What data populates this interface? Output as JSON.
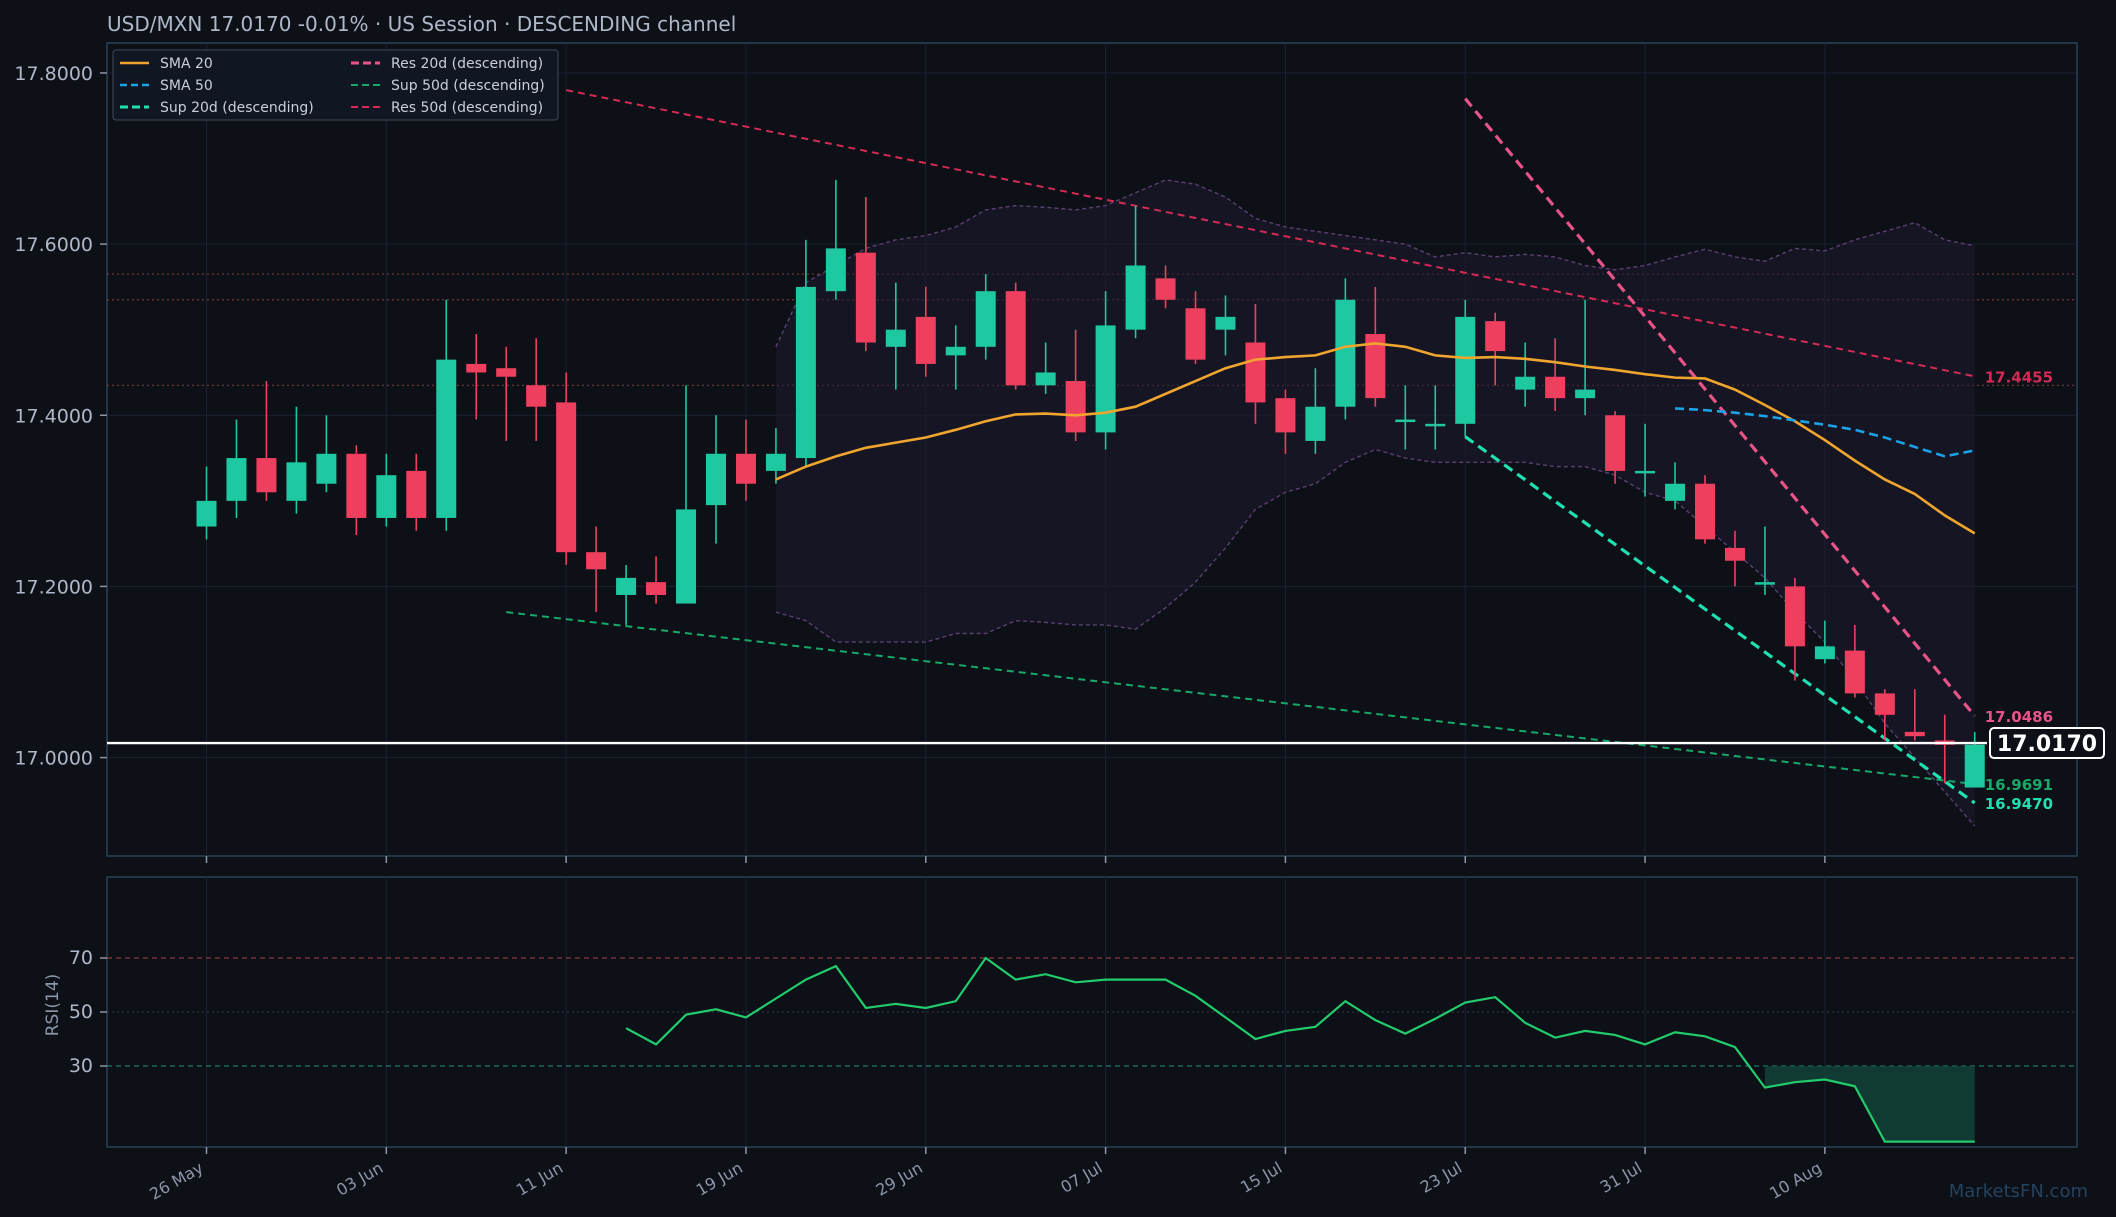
{
  "header": {
    "pair": "USD/MXN",
    "price": "17.0170",
    "change": "-0.01%",
    "session": "US Session",
    "channel": "DESCENDING channel",
    "title": "USD/MXN   17.0170   -0.01%  ·  US Session  ·  DESCENDING channel"
  },
  "watermark": "MarketsFN.com",
  "colors": {
    "background": "#0d1017",
    "panel_border": "#2b4258",
    "up": "#1ec8a0",
    "down": "#ef3f5f",
    "sma20": "#f0a52e",
    "sma50": "#1aa3e8",
    "res20": "#e8548a",
    "sup20": "#1fe0b0",
    "res50": "#d42a55",
    "sup50": "#17a86a",
    "rsi": "#22cc6c",
    "last_price": "#ffffff"
  },
  "chart_data": [
    {
      "type": "candlestick",
      "title": "USD/MXN   17.0170   -0.01%  ·  US Session  ·  DESCENDING channel",
      "ylim": [
        16.885,
        17.835
      ],
      "yticks": [
        "17.0000",
        "17.2000",
        "17.4000",
        "17.6000",
        "17.8000"
      ],
      "ytick_values": [
        17.0,
        17.2,
        17.4,
        17.6,
        17.8
      ],
      "xticks": [
        "26 May",
        "03 Jun",
        "11 Jun",
        "19 Jun",
        "29 Jun",
        "07 Jul",
        "15 Jul",
        "23 Jul",
        "31 Jul",
        "10 Aug"
      ],
      "xtick_index": [
        0,
        6,
        12,
        18,
        24,
        30,
        36,
        42,
        48,
        54
      ],
      "num_bars": 60,
      "last_price": 17.017,
      "last_price_label": "17.0170",
      "candles": [
        [
          17.27,
          17.3,
          17.255,
          17.34
        ],
        [
          17.3,
          17.35,
          17.28,
          17.395
        ],
        [
          17.35,
          17.31,
          17.3,
          17.44
        ],
        [
          17.3,
          17.345,
          17.285,
          17.41
        ],
        [
          17.32,
          17.355,
          17.31,
          17.4
        ],
        [
          17.355,
          17.28,
          17.26,
          17.365
        ],
        [
          17.28,
          17.33,
          17.27,
          17.355
        ],
        [
          17.335,
          17.28,
          17.265,
          17.355
        ],
        [
          17.28,
          17.465,
          17.265,
          17.535
        ],
        [
          17.46,
          17.45,
          17.395,
          17.495
        ],
        [
          17.455,
          17.445,
          17.37,
          17.48
        ],
        [
          17.435,
          17.41,
          17.37,
          17.49
        ],
        [
          17.415,
          17.24,
          17.225,
          17.45
        ],
        [
          17.24,
          17.22,
          17.17,
          17.27
        ],
        [
          17.19,
          17.21,
          17.155,
          17.225
        ],
        [
          17.205,
          17.19,
          17.18,
          17.235
        ],
        [
          17.18,
          17.29,
          17.18,
          17.435
        ],
        [
          17.295,
          17.355,
          17.25,
          17.4
        ],
        [
          17.355,
          17.32,
          17.3,
          17.395
        ],
        [
          17.335,
          17.355,
          17.32,
          17.385
        ],
        [
          17.35,
          17.55,
          17.34,
          17.605
        ],
        [
          17.545,
          17.595,
          17.535,
          17.675
        ],
        [
          17.59,
          17.485,
          17.475,
          17.655
        ],
        [
          17.48,
          17.5,
          17.43,
          17.555
        ],
        [
          17.515,
          17.46,
          17.445,
          17.55
        ],
        [
          17.47,
          17.48,
          17.43,
          17.505
        ],
        [
          17.48,
          17.545,
          17.465,
          17.565
        ],
        [
          17.545,
          17.435,
          17.43,
          17.555
        ],
        [
          17.435,
          17.45,
          17.425,
          17.485
        ],
        [
          17.44,
          17.38,
          17.37,
          17.5
        ],
        [
          17.38,
          17.505,
          17.36,
          17.545
        ],
        [
          17.5,
          17.575,
          17.49,
          17.645
        ],
        [
          17.56,
          17.535,
          17.525,
          17.575
        ],
        [
          17.525,
          17.465,
          17.46,
          17.545
        ],
        [
          17.5,
          17.515,
          17.47,
          17.54
        ],
        [
          17.485,
          17.415,
          17.39,
          17.53
        ],
        [
          17.42,
          17.38,
          17.355,
          17.43
        ],
        [
          17.37,
          17.41,
          17.355,
          17.455
        ],
        [
          17.41,
          17.535,
          17.395,
          17.56
        ],
        [
          17.495,
          17.42,
          17.41,
          17.55
        ],
        [
          17.395,
          17.395,
          17.36,
          17.435
        ],
        [
          17.39,
          17.39,
          17.36,
          17.435
        ],
        [
          17.39,
          17.515,
          17.375,
          17.535
        ],
        [
          17.51,
          17.475,
          17.435,
          17.52
        ],
        [
          17.43,
          17.445,
          17.41,
          17.485
        ],
        [
          17.445,
          17.42,
          17.405,
          17.49
        ],
        [
          17.42,
          17.43,
          17.4,
          17.535
        ],
        [
          17.4,
          17.335,
          17.32,
          17.405
        ],
        [
          17.335,
          17.335,
          17.305,
          17.39
        ],
        [
          17.3,
          17.32,
          17.29,
          17.345
        ],
        [
          17.32,
          17.255,
          17.25,
          17.33
        ],
        [
          17.245,
          17.23,
          17.2,
          17.265
        ],
        [
          17.205,
          17.205,
          17.19,
          17.27
        ],
        [
          17.2,
          17.13,
          17.09,
          17.21
        ],
        [
          17.115,
          17.13,
          17.11,
          17.16
        ],
        [
          17.125,
          17.075,
          17.07,
          17.155
        ],
        [
          17.075,
          17.05,
          17.02,
          17.08
        ],
        [
          17.03,
          17.025,
          17.02,
          17.08
        ],
        [
          17.02,
          17.015,
          16.97,
          17.05
        ],
        [
          16.965,
          17.015,
          16.965,
          17.03
        ]
      ],
      "sma20": {
        "start": 19,
        "values": [
          17.325,
          17.34,
          17.352,
          17.362,
          17.368,
          17.374,
          17.383,
          17.393,
          17.401,
          17.402,
          17.4,
          17.403,
          17.41,
          17.425,
          17.44,
          17.455,
          17.465,
          17.468,
          17.47,
          17.48,
          17.484,
          17.48,
          17.47,
          17.467,
          17.468,
          17.466,
          17.462,
          17.457,
          17.453,
          17.448,
          17.444,
          17.443,
          17.43,
          17.412,
          17.393,
          17.371,
          17.347,
          17.325,
          17.308,
          17.283,
          17.262
        ]
      },
      "sma50": {
        "start": 49,
        "values": [
          17.408,
          17.406,
          17.403,
          17.399,
          17.394,
          17.389,
          17.383,
          17.374,
          17.363,
          17.352,
          17.359
        ]
      },
      "bb_upper": {
        "start": 19,
        "values": [
          17.48,
          17.555,
          17.575,
          17.595,
          17.605,
          17.61,
          17.62,
          17.64,
          17.645,
          17.643,
          17.64,
          17.645,
          17.66,
          17.675,
          17.67,
          17.655,
          17.63,
          17.62,
          17.615,
          17.61,
          17.605,
          17.6,
          17.585,
          17.59,
          17.585,
          17.588,
          17.585,
          17.575,
          17.57,
          17.575,
          17.585,
          17.594,
          17.585,
          17.58,
          17.595,
          17.592,
          17.605,
          17.615,
          17.625,
          17.605,
          17.598
        ]
      },
      "bb_lower": {
        "start": 19,
        "values": [
          17.17,
          17.16,
          17.135,
          17.135,
          17.135,
          17.135,
          17.145,
          17.145,
          17.16,
          17.158,
          17.155,
          17.155,
          17.15,
          17.175,
          17.205,
          17.245,
          17.29,
          17.31,
          17.32,
          17.345,
          17.36,
          17.35,
          17.345,
          17.345,
          17.345,
          17.345,
          17.34,
          17.34,
          17.33,
          17.31,
          17.3,
          17.27,
          17.24,
          17.21,
          17.17,
          17.135,
          17.09,
          17.04,
          17.0,
          16.96,
          16.92
        ]
      },
      "lines": [
        {
          "name": "Res 20d (descending)",
          "x": [
            42,
            59
          ],
          "y": [
            17.77,
            17.0486
          ],
          "label": "17.0486"
        },
        {
          "name": "Sup 20d (descending)",
          "x": [
            42,
            59
          ],
          "y": [
            17.375,
            16.947
          ],
          "label": "16.9470"
        },
        {
          "name": "Res 50d (descending)",
          "x": [
            12,
            59
          ],
          "y": [
            17.78,
            17.4455
          ],
          "label": "17.4455"
        },
        {
          "name": "Sup 50d (descending)",
          "x": [
            10,
            59
          ],
          "y": [
            17.17,
            16.9691
          ],
          "label": "16.9691"
        }
      ],
      "horizontal_levels": [
        17.565,
        17.535,
        17.435
      ],
      "legend": [
        "SMA 20",
        "SMA 50",
        "Sup 20d (descending)",
        "Res 20d (descending)",
        "Sup 50d (descending)",
        "Res 50d (descending)"
      ]
    },
    {
      "type": "line",
      "ylabel": "RSI(14)",
      "ylim": [
        0,
        100
      ],
      "yticks": [
        "30",
        "50",
        "70"
      ],
      "ytick_values": [
        30,
        50,
        70
      ],
      "levels": [
        30,
        50,
        70
      ],
      "rsi": {
        "start": 14,
        "values": [
          44,
          38,
          49,
          51,
          48,
          55,
          62,
          67,
          51.5,
          53,
          51.5,
          54,
          70,
          62,
          64,
          61,
          62,
          62,
          62,
          56,
          48,
          40,
          43,
          44.5,
          54,
          47,
          42,
          47.5,
          53.5,
          55.5,
          46,
          40.5,
          43,
          41.5,
          38,
          42.5,
          41,
          37,
          22,
          24,
          25,
          22.5,
          2,
          2,
          2,
          2
        ]
      },
      "oversold_fill": {
        "start": 52,
        "end": 59
      }
    }
  ]
}
